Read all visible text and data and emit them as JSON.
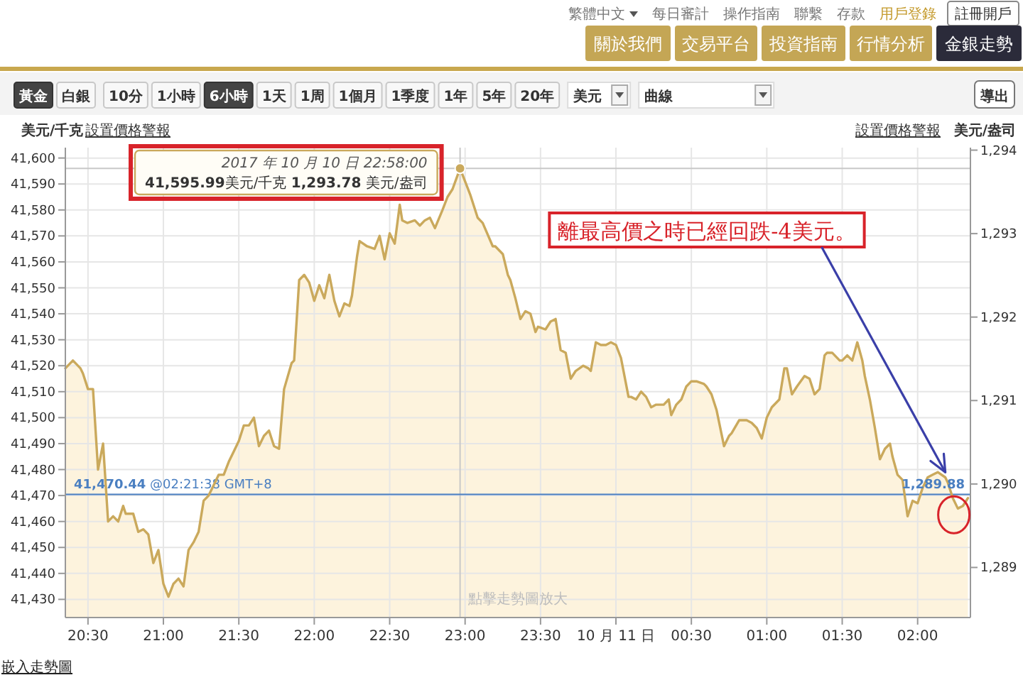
{
  "chart_data": {
    "type": "area",
    "ylabel": "美元/千克",
    "y2label": "美元/盎司",
    "x": [
      "2017-10-10T20:21",
      "2017-10-10T20:24",
      "2017-10-10T20:27",
      "2017-10-10T20:28",
      "2017-10-10T20:30",
      "2017-10-10T20:32",
      "2017-10-10T20:34",
      "2017-10-10T20:36",
      "2017-10-10T20:38",
      "2017-10-10T20:40",
      "2017-10-10T20:42",
      "2017-10-10T20:44",
      "2017-10-10T20:45",
      "2017-10-10T20:48",
      "2017-10-10T20:50",
      "2017-10-10T20:52",
      "2017-10-10T20:54",
      "2017-10-10T20:56",
      "2017-10-10T20:58",
      "2017-10-10T21:00",
      "2017-10-10T21:02",
      "2017-10-10T21:04",
      "2017-10-10T21:06",
      "2017-10-10T21:08",
      "2017-10-10T21:10",
      "2017-10-10T21:12",
      "2017-10-10T21:14",
      "2017-10-10T21:16",
      "2017-10-10T21:18",
      "2017-10-10T21:20",
      "2017-10-10T21:22",
      "2017-10-10T21:24",
      "2017-10-10T21:26",
      "2017-10-10T21:28",
      "2017-10-10T21:30",
      "2017-10-10T21:32",
      "2017-10-10T21:34",
      "2017-10-10T21:36",
      "2017-10-10T21:38",
      "2017-10-10T21:40",
      "2017-10-10T21:42",
      "2017-10-10T21:44",
      "2017-10-10T21:46",
      "2017-10-10T21:48",
      "2017-10-10T21:51",
      "2017-10-10T21:52",
      "2017-10-10T21:54",
      "2017-10-10T21:56",
      "2017-10-10T21:58",
      "2017-10-10T22:00",
      "2017-10-10T22:02",
      "2017-10-10T22:04",
      "2017-10-10T22:06",
      "2017-10-10T22:08",
      "2017-10-10T22:10",
      "2017-10-10T22:12",
      "2017-10-10T22:14",
      "2017-10-10T22:15",
      "2017-10-10T22:17",
      "2017-10-10T22:18",
      "2017-10-10T22:21",
      "2017-10-10T22:24",
      "2017-10-10T22:26",
      "2017-10-10T22:28",
      "2017-10-10T22:30",
      "2017-10-10T22:32",
      "2017-10-10T22:34",
      "2017-10-10T22:35",
      "2017-10-10T22:37",
      "2017-10-10T22:40",
      "2017-10-10T22:42",
      "2017-10-10T22:44",
      "2017-10-10T22:46",
      "2017-10-10T22:48",
      "2017-10-10T22:51",
      "2017-10-10T22:53",
      "2017-10-10T22:55",
      "2017-10-10T22:58",
      "2017-10-10T23:00",
      "2017-10-10T23:02",
      "2017-10-10T23:05",
      "2017-10-10T23:07",
      "2017-10-10T23:11",
      "2017-10-10T23:12",
      "2017-10-10T23:15",
      "2017-10-10T23:17",
      "2017-10-10T23:18",
      "2017-10-10T23:20",
      "2017-10-10T23:22",
      "2017-10-10T23:24",
      "2017-10-10T23:26",
      "2017-10-10T23:28",
      "2017-10-10T23:29",
      "2017-10-10T23:32",
      "2017-10-10T23:34",
      "2017-10-10T23:36",
      "2017-10-10T23:38",
      "2017-10-10T23:40",
      "2017-10-10T23:42",
      "2017-10-10T23:44",
      "2017-10-10T23:47",
      "2017-10-10T23:49",
      "2017-10-10T23:50",
      "2017-10-10T23:52",
      "2017-10-10T23:54",
      "2017-10-10T23:56",
      "2017-10-10T23:58",
      "2017-10-11T00:00",
      "2017-10-11T00:02",
      "2017-10-11T00:05",
      "2017-10-11T00:06",
      "2017-10-11T00:08",
      "2017-10-11T00:10",
      "2017-10-11T00:12",
      "2017-10-11T00:14",
      "2017-10-11T00:16",
      "2017-10-11T00:19",
      "2017-10-11T00:21",
      "2017-10-11T00:22",
      "2017-10-11T00:24",
      "2017-10-11T00:26",
      "2017-10-11T00:28",
      "2017-10-11T00:30",
      "2017-10-11T00:32",
      "2017-10-11T00:35",
      "2017-10-11T00:36",
      "2017-10-11T00:38",
      "2017-10-11T00:40",
      "2017-10-11T00:43",
      "2017-10-11T00:45",
      "2017-10-11T00:46",
      "2017-10-11T00:49",
      "2017-10-11T00:52",
      "2017-10-11T00:54",
      "2017-10-11T00:56",
      "2017-10-11T00:58",
      "2017-10-11T01:00",
      "2017-10-11T01:02",
      "2017-10-11T01:05",
      "2017-10-11T01:07",
      "2017-10-11T01:08",
      "2017-10-11T01:10",
      "2017-10-11T01:12",
      "2017-10-11T01:15",
      "2017-10-11T01:17",
      "2017-10-11T01:19",
      "2017-10-11T01:21",
      "2017-10-11T01:23",
      "2017-10-11T01:24",
      "2017-10-11T01:26",
      "2017-10-11T01:29",
      "2017-10-11T01:30",
      "2017-10-11T01:32",
      "2017-10-11T01:34",
      "2017-10-11T01:36",
      "2017-10-11T01:38",
      "2017-10-11T01:39",
      "2017-10-11T01:41",
      "2017-10-11T01:43",
      "2017-10-11T01:45",
      "2017-10-11T01:47",
      "2017-10-11T01:49",
      "2017-10-11T01:50",
      "2017-10-11T01:52",
      "2017-10-11T01:54",
      "2017-10-11T01:56",
      "2017-10-11T01:58",
      "2017-10-11T02:00",
      "2017-10-11T02:02",
      "2017-10-11T02:04",
      "2017-10-11T02:06",
      "2017-10-11T02:08",
      "2017-10-11T02:11",
      "2017-10-11T02:12",
      "2017-10-11T02:14",
      "2017-10-11T02:16",
      "2017-10-11T02:18",
      "2017-10-11T02:20"
    ],
    "series": [
      {
        "color": "#caa95c",
        "values": [
          41519,
          41522,
          41519,
          41517,
          41511,
          41511,
          41480,
          41490,
          41460,
          41462,
          41460,
          41466,
          41463,
          41463,
          41456,
          41457,
          41455,
          41444,
          41449,
          41436,
          41431,
          41436,
          41438,
          41435,
          41449,
          41452,
          41456,
          41468,
          41470,
          41474,
          41478,
          41478,
          41483,
          41487,
          41491,
          41497,
          41497,
          41500,
          41489,
          41493,
          41495,
          41489,
          41488,
          41511,
          41521,
          41522,
          41553,
          41555,
          41552,
          41545,
          41551,
          41546,
          41555,
          41545,
          41539,
          41544,
          41543,
          41547,
          41562,
          41568,
          41566,
          41565,
          41570,
          41561,
          41571,
          41567,
          41582,
          41576,
          41575,
          41576,
          41574,
          41576,
          41577,
          41573,
          41580,
          41585,
          41588,
          41595.99,
          41591,
          41586,
          41577,
          41575,
          41566,
          41566,
          41563,
          41555,
          41553,
          41546,
          41538,
          41541,
          41540,
          41533,
          41535,
          41534,
          41537,
          41538,
          41526,
          41525,
          41515,
          41518,
          41520,
          41519,
          41518,
          41529,
          41528,
          41528,
          41529,
          41528,
          41523,
          41508,
          41508,
          41507,
          41510,
          41508,
          41504,
          41505,
          41505,
          41507,
          41501,
          41505,
          41507,
          41512,
          41514,
          41514,
          41513,
          41512,
          41509,
          41503,
          41489,
          41493,
          41494,
          41499,
          41499,
          41498,
          41496,
          41492,
          41500,
          41504,
          41507,
          41519,
          41519,
          41509,
          41512,
          41516,
          41515,
          41509,
          41511,
          41524,
          41525,
          41525,
          41522,
          41522,
          41524,
          41522,
          41529,
          41522,
          41516,
          41507,
          41496,
          41484,
          41488,
          41490,
          41485,
          41478,
          41476,
          41462,
          41468,
          41467,
          41473,
          41477,
          41478,
          41479,
          41477,
          41475,
          41469,
          41465,
          41466,
          41469
        ]
      }
    ],
    "xlim": [
      "2017-10-10T20:21",
      "2017-10-11T02:21"
    ],
    "xticks": [
      {
        "value": "2017-10-10T20:30",
        "label": "20:30"
      },
      {
        "value": "2017-10-10T21:00",
        "label": "21:00"
      },
      {
        "value": "2017-10-10T21:30",
        "label": "21:30"
      },
      {
        "value": "2017-10-10T22:00",
        "label": "22:00"
      },
      {
        "value": "2017-10-10T22:30",
        "label": "22:30"
      },
      {
        "value": "2017-10-10T23:00",
        "label": "23:00"
      },
      {
        "value": "2017-10-10T23:30",
        "label": "23:30"
      },
      {
        "value": "2017-10-11T00:00",
        "label": "10 月 11 日"
      },
      {
        "value": "2017-10-11T00:30",
        "label": "00:30"
      },
      {
        "value": "2017-10-11T01:00",
        "label": "01:00"
      },
      {
        "value": "2017-10-11T01:30",
        "label": "01:30"
      },
      {
        "value": "2017-10-11T02:00",
        "label": "02:00"
      }
    ],
    "ylim": [
      41423,
      41604
    ],
    "yticks": [
      {
        "value": 41430,
        "label": "41,430"
      },
      {
        "value": 41440,
        "label": "41,440"
      },
      {
        "value": 41450,
        "label": "41,450"
      },
      {
        "value": 41460,
        "label": "41,460"
      },
      {
        "value": 41470,
        "label": "41,470"
      },
      {
        "value": 41480,
        "label": "41,480"
      },
      {
        "value": 41490,
        "label": "41,490"
      },
      {
        "value": 41500,
        "label": "41,500"
      },
      {
        "value": 41510,
        "label": "41,510"
      },
      {
        "value": 41520,
        "label": "41,520"
      },
      {
        "value": 41530,
        "label": "41,530"
      },
      {
        "value": 41540,
        "label": "41,540"
      },
      {
        "value": 41550,
        "label": "41,550"
      },
      {
        "value": 41560,
        "label": "41,560"
      },
      {
        "value": 41570,
        "label": "41,570"
      },
      {
        "value": 41580,
        "label": "41,580"
      },
      {
        "value": 41590,
        "label": "41,590"
      },
      {
        "value": 41600,
        "label": "41,600"
      }
    ],
    "y2lim": [
      1288.4,
      1294.03
    ],
    "y2ticks": [
      {
        "value": 1289,
        "label": "1,289"
      },
      {
        "value": 1290,
        "label": "1,290"
      },
      {
        "value": 1291,
        "label": "1,291"
      },
      {
        "value": 1292,
        "label": "1,292"
      },
      {
        "value": 1293,
        "label": "1,293"
      },
      {
        "value": 1294,
        "label": "1,294"
      }
    ],
    "grid": true,
    "ref_lines": [
      {
        "axis": "x",
        "value": "2017-10-10T22:58",
        "color": "#c8c8c8"
      },
      {
        "axis": "y",
        "value": 41595.99,
        "color": "#c8c8c8"
      },
      {
        "axis": "y",
        "value": 41470.44,
        "label": "**41,470.44** @02:21:38 GMT+8",
        "color": "#4a7fc1"
      }
    ],
    "annotations": [
      {
        "text": "2017 年 10 月 10 日 22:58:00",
        "x": "2017-10-10T22:58",
        "y": 41595.99
      },
      {
        "text": "**41,595.99**美元/千克 **1,293.78** 美元/盎司",
        "x": "2017-10-10T22:58",
        "y": 41595.99
      },
      {
        "text": "離最高價之時已經回跌-4美元。",
        "x": "2017-10-11T02:11",
        "y": 41479
      },
      {
        "text": "1,289.88",
        "x": "2017-10-11T02:21",
        "y": 41470.44
      },
      "繁體中文",
      "每日審計",
      "操作指南",
      "聯繫",
      "存款",
      "用戶登錄",
      "註冊開戶",
      "關於我們",
      "交易平台",
      "投資指南",
      "行情分析",
      "金銀走勢",
      "黃金",
      "白銀",
      "10分",
      "1小時",
      "6小時",
      "1天",
      "1周",
      "1個月",
      "1季度",
      "1年",
      "5年",
      "20年",
      "美元",
      "曲線",
      "導出",
      "設置價格警報",
      "設置價格警報",
      "點擊走勢圖放大",
      "嵌入走勢圖"
    ]
  }
}
